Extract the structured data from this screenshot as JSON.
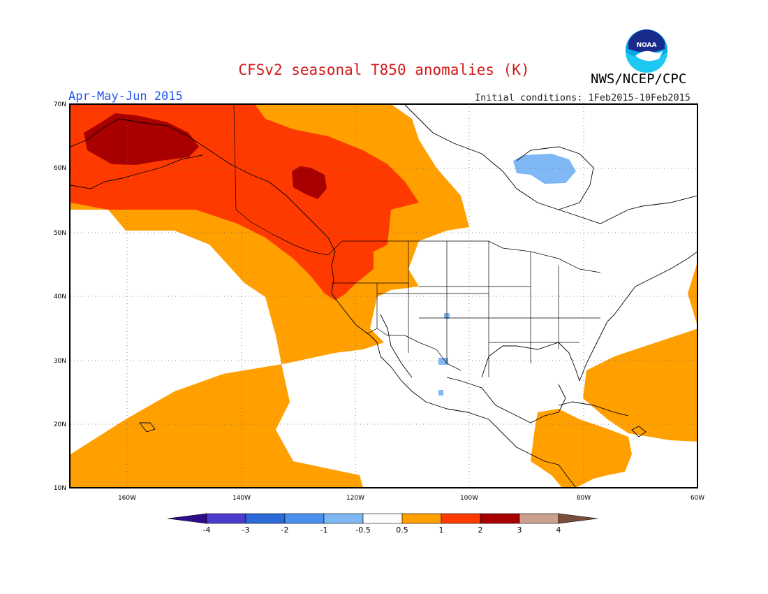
{
  "title": "CFSv2 seasonal T850 anomalies (K)",
  "agency": "NWS/NCEP/CPC",
  "logo_text": "NOAA",
  "season": "Apr-May-Jun 2015",
  "initial_conditions": "Initial conditions: 1Feb2015-10Feb2015",
  "lat_labels": [
    "70N",
    "60N",
    "50N",
    "40N",
    "30N",
    "20N",
    "10N"
  ],
  "lon_labels": [
    "160W",
    "140W",
    "120W",
    "100W",
    "80W",
    "60W"
  ],
  "colorbar": {
    "tick_labels": [
      "-4",
      "-3",
      "-2",
      "-1",
      "-0.5",
      "0.5",
      "1",
      "2",
      "3",
      "4"
    ],
    "colors": [
      "#2e0c8c",
      "#4c3ccc",
      "#2c6ad8",
      "#4a90ee",
      "#7fb8f4",
      "#ffffff",
      "#ff9f00",
      "#ff3a00",
      "#a80000",
      "#caa08e",
      "#7a4e3c"
    ]
  },
  "anomaly_colors": {
    "warm_1": "#ff9f00",
    "warm_2": "#ff3a00",
    "warm_3": "#a80000",
    "cool_1": "#7fb8f4"
  }
}
